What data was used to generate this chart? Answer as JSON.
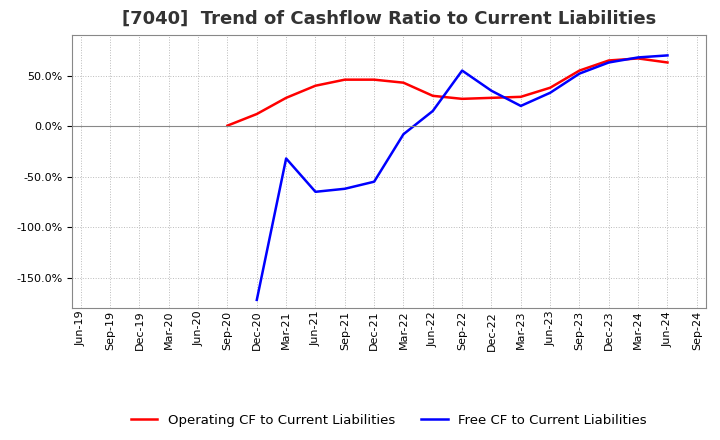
{
  "title": "[7040]  Trend of Cashflow Ratio to Current Liabilities",
  "legend_labels": [
    "Operating CF to Current Liabilities",
    "Free CF to Current Liabilities"
  ],
  "legend_colors": [
    "red",
    "blue"
  ],
  "x_labels": [
    "Jun-19",
    "Sep-19",
    "Dec-19",
    "Mar-20",
    "Jun-20",
    "Sep-20",
    "Dec-20",
    "Mar-21",
    "Jun-21",
    "Sep-21",
    "Dec-21",
    "Mar-22",
    "Jun-22",
    "Sep-22",
    "Dec-22",
    "Mar-23",
    "Jun-23",
    "Sep-23",
    "Dec-23",
    "Mar-24",
    "Jun-24",
    "Sep-24"
  ],
  "operating_cf": [
    null,
    null,
    null,
    null,
    null,
    0.5,
    12.0,
    28.0,
    40.0,
    46.0,
    46.0,
    43.0,
    30.0,
    27.0,
    28.0,
    29.0,
    38.0,
    55.0,
    65.0,
    67.0,
    63.0,
    null
  ],
  "free_cf": [
    null,
    null,
    null,
    null,
    null,
    null,
    -172.0,
    -32.0,
    -65.0,
    -62.0,
    -55.0,
    -8.0,
    15.0,
    55.0,
    35.0,
    20.0,
    33.0,
    52.0,
    63.0,
    68.0,
    70.0,
    null
  ],
  "ylim": [
    -180,
    90
  ],
  "yticks": [
    -150.0,
    -100.0,
    -50.0,
    0.0,
    50.0
  ],
  "grid_color": "#bbbbbb",
  "background_color": "#ffffff",
  "title_fontsize": 13,
  "tick_fontsize": 8,
  "legend_fontsize": 9.5
}
